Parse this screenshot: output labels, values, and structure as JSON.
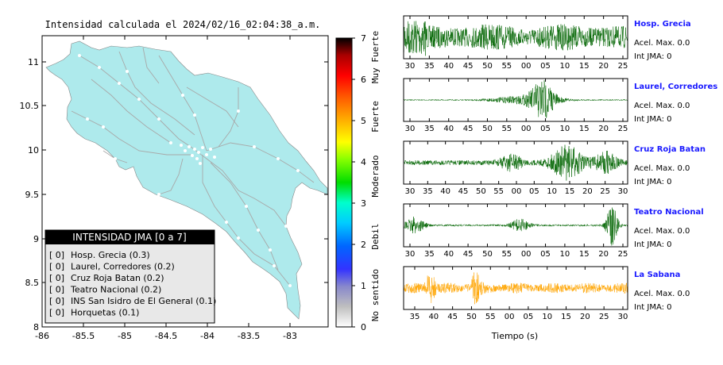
{
  "map": {
    "title": "Intensidad calculada el 2024/02/16_02:04:38_a.m.",
    "x_ticks": [
      "-86",
      "-85.5",
      "-85",
      "-84.5",
      "-84",
      "-83.5",
      "-83"
    ],
    "y_ticks": [
      "11",
      "10.5",
      "10",
      "9.5",
      "9",
      "8.5",
      "8"
    ],
    "land_color": "#aeeaec",
    "legend": {
      "header": "INTENSIDAD JMA [0 a 7]",
      "items": [
        {
          "level": "[ 0]",
          "label": "Hosp. Grecia (0.3)"
        },
        {
          "level": "[ 0]",
          "label": "Laurel, Corredores (0.2)"
        },
        {
          "level": "[ 0]",
          "label": "Cruz Roja Batan (0.2)"
        },
        {
          "level": "[ 0]",
          "label": "Teatro Nacional (0.2)"
        },
        {
          "level": "[ 0]",
          "label": "INS San Isidro de El General (0.1)"
        },
        {
          "level": "[ 0]",
          "label": "Horquetas (0.1)"
        }
      ]
    }
  },
  "colorbar": {
    "ticks": [
      "0",
      "1",
      "2",
      "3",
      "4",
      "5",
      "6",
      "7"
    ],
    "categories": [
      "No sentido",
      "Debil",
      "Moderado",
      "Fuerte",
      "Muy Fuerte"
    ]
  },
  "waveforms": {
    "xlabel": "Tiempo (s)",
    "stations": [
      {
        "name": "Hosp. Grecia",
        "accel": "Acel. Max. 0.0",
        "int": "Int JMA: 0",
        "color": "#006400",
        "ticks": [
          "30",
          "35",
          "40",
          "45",
          "50",
          "55",
          "00",
          "05",
          "10",
          "15",
          "20",
          "25"
        ]
      },
      {
        "name": "Laurel, Corredores",
        "accel": "Acel. Max. 0.0",
        "int": "Int JMA: 0",
        "color": "#006400",
        "ticks": [
          "30",
          "35",
          "40",
          "45",
          "50",
          "55",
          "00",
          "05",
          "10",
          "15",
          "20",
          "25"
        ]
      },
      {
        "name": "Cruz Roja Batan",
        "accel": "Acel. Max. 0.0",
        "int": "Int JMA: 0",
        "color": "#006400",
        "ticks": [
          "30",
          "35",
          "40",
          "45",
          "50",
          "55",
          "00",
          "05",
          "10",
          "15",
          "20",
          "25",
          "30"
        ]
      },
      {
        "name": "Teatro Nacional",
        "accel": "Acel. Max. 0.0",
        "int": "Int JMA: 0",
        "color": "#006400",
        "ticks": [
          "30",
          "35",
          "40",
          "45",
          "50",
          "55",
          "00",
          "05",
          "10",
          "15",
          "20",
          "25"
        ]
      },
      {
        "name": "La Sabana",
        "accel": "Acel. Max. 0.0",
        "int": "Int JMA: 0",
        "color": "#ffa500",
        "ticks": [
          "35",
          "40",
          "45",
          "50",
          "55",
          "00",
          "05",
          "10",
          "15",
          "20",
          "25",
          "30"
        ]
      }
    ]
  },
  "chart_data": [
    {
      "type": "map",
      "title": "Intensidad calculada el 2024/02/16_02:04:38_a.m.",
      "xlim": [
        -86,
        -82.5
      ],
      "ylim": [
        8,
        11.3
      ]
    },
    {
      "type": "line",
      "xlabel": "Tiempo (s)",
      "series": [
        {
          "name": "Hosp. Grecia"
        },
        {
          "name": "Laurel, Corredores"
        },
        {
          "name": "Cruz Roja Batan"
        },
        {
          "name": "Teatro Nacional"
        },
        {
          "name": "La Sabana"
        }
      ]
    }
  ]
}
